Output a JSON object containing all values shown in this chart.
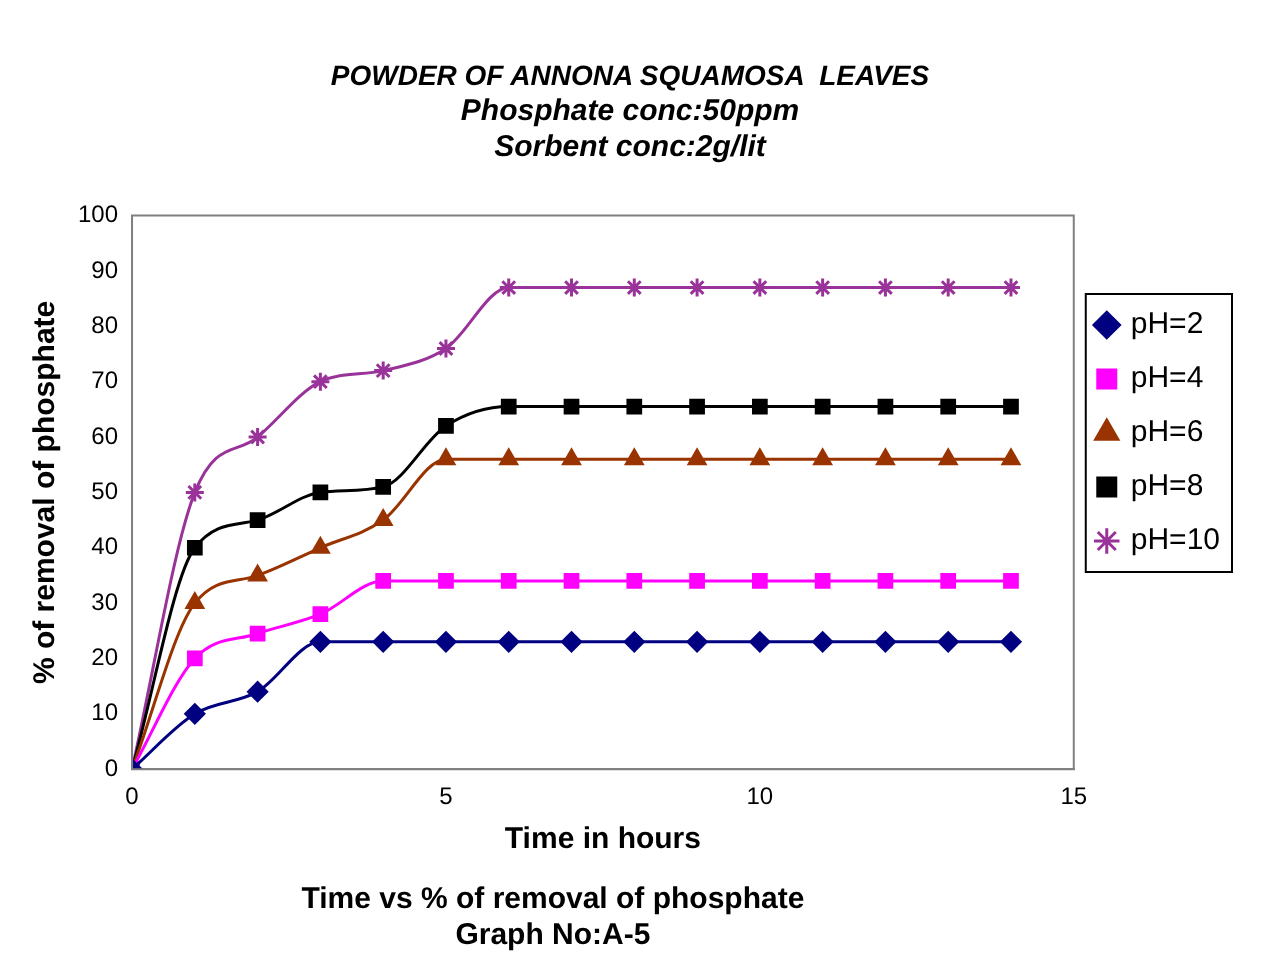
{
  "chart_data": {
    "type": "line",
    "title": "POWDER OF ANNONA SQUAMOSA  LEAVES",
    "subtitle": "Phosphate conc:50ppm\nSorbent conc:2g/lit",
    "xlabel": "Time in hours",
    "ylabel": "% of removal of phosphate",
    "annotations": [
      "Time vs % of removal of phosphate",
      "Graph No:A-5"
    ],
    "x": [
      0,
      1,
      2,
      3,
      4,
      5,
      6,
      7,
      8,
      9,
      10,
      11,
      12,
      13,
      14
    ],
    "series": [
      {
        "name": "pH=2",
        "color": "#000080",
        "marker": "diamond",
        "values": [
          0,
          10,
          14,
          23,
          23,
          23,
          23,
          23,
          23,
          23,
          23,
          23,
          23,
          23,
          23
        ]
      },
      {
        "name": "pH=4",
        "color": "#ff00ff",
        "marker": "square",
        "values": [
          0,
          20,
          24.5,
          28,
          34,
          34,
          34,
          34,
          34,
          34,
          34,
          34,
          34,
          34,
          34
        ]
      },
      {
        "name": "pH=6",
        "color": "#993300",
        "marker": "triangle",
        "values": [
          0,
          30,
          35,
          40,
          45,
          56,
          56,
          56,
          56,
          56,
          56,
          56,
          56,
          56,
          56
        ]
      },
      {
        "name": "pH=8",
        "color": "#000000",
        "marker": "square",
        "values": [
          0,
          40,
          45,
          50,
          51,
          62,
          65.5,
          65.5,
          65.5,
          65.5,
          65.5,
          65.5,
          65.5,
          65.5,
          65.5
        ]
      },
      {
        "name": "pH=10",
        "color": "#993399",
        "marker": "cross",
        "values": [
          0,
          50,
          60,
          70,
          72,
          76,
          87,
          87,
          87,
          87,
          87,
          87,
          87,
          87,
          87
        ]
      }
    ],
    "xlim": [
      0,
      15
    ],
    "xticks": [
      0,
      5,
      10,
      15
    ],
    "ylim": [
      0,
      100
    ],
    "yticks": [
      0,
      10,
      20,
      30,
      40,
      50,
      60,
      70,
      80,
      90,
      100
    ],
    "grid": false,
    "legend": "right",
    "line_style": "solid"
  }
}
